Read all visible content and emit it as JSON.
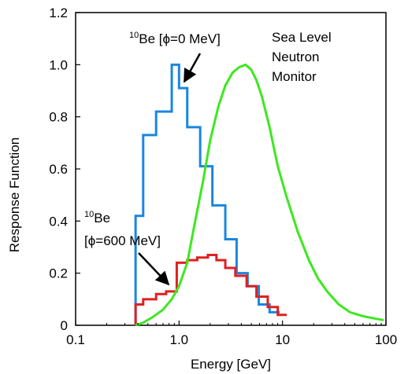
{
  "chart_data": {
    "type": "line",
    "x_scale": "log",
    "xlim": [
      0.1,
      100
    ],
    "ylim": [
      0,
      1.2
    ],
    "xlabel": "Energy [GeV]",
    "ylabel": "Response Function",
    "x_ticks": [
      {
        "value": 0.1,
        "label": "0.1"
      },
      {
        "value": 1,
        "label": "1.0"
      },
      {
        "value": 10,
        "label": "10"
      },
      {
        "value": 100,
        "label": "100"
      }
    ],
    "y_ticks": [
      {
        "value": 0,
        "label": "0"
      },
      {
        "value": 0.2,
        "label": "0.2"
      },
      {
        "value": 0.4,
        "label": "0.4"
      },
      {
        "value": 0.6,
        "label": "0.6"
      },
      {
        "value": 0.8,
        "label": "0.8"
      },
      {
        "value": 1.0,
        "label": "1.0"
      },
      {
        "value": 1.2,
        "label": "1.2"
      }
    ],
    "grid": false,
    "series": [
      {
        "color": "#1a86e0",
        "step": true,
        "edges": [
          0.38,
          0.45,
          0.6,
          0.85,
          1.0,
          1.2,
          1.6,
          2.1,
          2.8,
          3.6,
          4.6,
          5.9,
          7.5,
          9.4
        ],
        "values": [
          0.42,
          0.73,
          0.82,
          1.0,
          0.91,
          0.76,
          0.61,
          0.46,
          0.33,
          0.2,
          0.15,
          0.08,
          0.05
        ]
      },
      {
        "color": "#e02020",
        "step": true,
        "edges": [
          0.38,
          0.45,
          0.6,
          0.75,
          0.95,
          1.2,
          1.5,
          1.9,
          2.3,
          2.8,
          3.5,
          4.5,
          5.6,
          7.2,
          9.0,
          11.0
        ],
        "values": [
          0.08,
          0.1,
          0.12,
          0.13,
          0.24,
          0.25,
          0.26,
          0.27,
          0.25,
          0.22,
          0.19,
          0.15,
          0.11,
          0.07,
          0.04
        ]
      },
      {
        "color": "#3de820",
        "x": [
          0.38,
          0.45,
          0.55,
          0.7,
          0.85,
          1.0,
          1.2,
          1.4,
          1.7,
          2.0,
          2.4,
          2.8,
          3.3,
          3.8,
          4.4,
          5.0,
          5.6,
          6.3,
          7.5,
          9.0,
          11,
          14,
          18,
          22,
          27,
          35,
          45,
          60,
          80,
          95
        ],
        "y": [
          0.0,
          0.01,
          0.03,
          0.06,
          0.1,
          0.15,
          0.24,
          0.38,
          0.55,
          0.71,
          0.84,
          0.92,
          0.97,
          0.99,
          1.0,
          0.98,
          0.94,
          0.88,
          0.76,
          0.61,
          0.49,
          0.36,
          0.25,
          0.18,
          0.13,
          0.08,
          0.05,
          0.035,
          0.025,
          0.02
        ]
      }
    ],
    "annotations": {
      "be10_phi0": {
        "sup": "10",
        "label": "Be [",
        "phi": "ϕ",
        "rest": "=0 MeV]"
      },
      "be10_phi600_line1": {
        "sup": "10",
        "label": "Be"
      },
      "be10_phi600_line2": {
        "open": "[",
        "phi": "ϕ",
        "rest": "=600 MeV]"
      },
      "nm_line1": "Sea Level",
      "nm_line2": "Neutron",
      "nm_line3": "Monitor"
    }
  }
}
